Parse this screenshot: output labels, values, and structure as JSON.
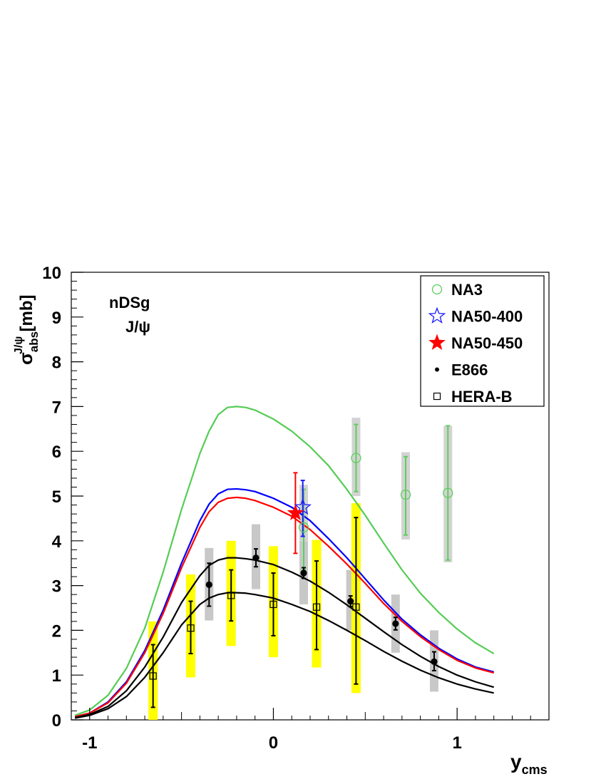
{
  "chart_data": {
    "type": "scatter",
    "xlabel": "y",
    "xlabel_sub": "cms",
    "ylabel_main": "σ",
    "ylabel_sup": "J/ψ",
    "ylabel_sub": "abs",
    "ylabel_unit": "[mb]",
    "xlim": [
      -1.1,
      1.5
    ],
    "ylim": [
      0,
      10
    ],
    "x_ticks": [
      -1,
      0,
      1
    ],
    "x_tick_labels": [
      "-1",
      "0",
      "1"
    ],
    "y_ticks": [
      0,
      1,
      2,
      3,
      4,
      5,
      6,
      7,
      8,
      9,
      10
    ],
    "y_tick_labels": [
      "0",
      "1",
      "2",
      "3",
      "4",
      "5",
      "6",
      "7",
      "8",
      "9",
      "10"
    ],
    "annotation": {
      "line1": "nDSg",
      "line2": "J/ψ"
    },
    "legend": {
      "position": "top-right",
      "entries": [
        {
          "label": "NA3",
          "marker": "open-circle",
          "color": "#5ccf5c"
        },
        {
          "label": "NA50-400",
          "marker": "open-star",
          "color": "#1a1aff"
        },
        {
          "label": "NA50-450",
          "marker": "filled-star",
          "color": "#ff0000"
        },
        {
          "label": "E866",
          "marker": "filled-dot",
          "color": "#000000"
        },
        {
          "label": "HERA-B",
          "marker": "open-square",
          "color": "#000000"
        }
      ]
    },
    "curves": [
      {
        "name": "green",
        "color": "#55cc55",
        "x": [
          -1.08,
          -1.0,
          -0.9,
          -0.8,
          -0.7,
          -0.6,
          -0.5,
          -0.4,
          -0.35,
          -0.3,
          -0.25,
          -0.2,
          -0.15,
          -0.1,
          0.0,
          0.1,
          0.2,
          0.3,
          0.4,
          0.5,
          0.6,
          0.7,
          0.8,
          0.9,
          1.0,
          1.1,
          1.2
        ],
        "y": [
          0.1,
          0.22,
          0.55,
          1.15,
          2.05,
          3.3,
          4.7,
          5.95,
          6.45,
          6.82,
          6.98,
          7.0,
          6.98,
          6.92,
          6.72,
          6.45,
          6.1,
          5.68,
          5.15,
          4.57,
          3.95,
          3.35,
          2.83,
          2.4,
          2.03,
          1.72,
          1.48
        ]
      },
      {
        "name": "blue",
        "color": "#0000ff",
        "x": [
          -1.08,
          -1.0,
          -0.9,
          -0.8,
          -0.7,
          -0.6,
          -0.5,
          -0.4,
          -0.35,
          -0.3,
          -0.25,
          -0.2,
          -0.15,
          -0.1,
          0.0,
          0.1,
          0.2,
          0.3,
          0.4,
          0.5,
          0.6,
          0.7,
          0.8,
          0.9,
          1.0,
          1.1,
          1.2
        ],
        "y": [
          0.07,
          0.15,
          0.4,
          0.85,
          1.55,
          2.45,
          3.5,
          4.45,
          4.82,
          5.05,
          5.15,
          5.16,
          5.14,
          5.1,
          4.95,
          4.75,
          4.45,
          4.05,
          3.62,
          3.15,
          2.68,
          2.25,
          1.9,
          1.6,
          1.36,
          1.18,
          1.07
        ]
      },
      {
        "name": "red",
        "color": "#ff0000",
        "x": [
          -1.08,
          -1.0,
          -0.9,
          -0.8,
          -0.7,
          -0.6,
          -0.5,
          -0.4,
          -0.35,
          -0.3,
          -0.25,
          -0.2,
          -0.15,
          -0.1,
          0.0,
          0.1,
          0.2,
          0.3,
          0.4,
          0.5,
          0.6,
          0.7,
          0.8,
          0.9,
          1.0,
          1.1,
          1.2
        ],
        "y": [
          0.07,
          0.15,
          0.38,
          0.82,
          1.5,
          2.38,
          3.4,
          4.3,
          4.65,
          4.86,
          4.95,
          4.97,
          4.95,
          4.9,
          4.75,
          4.55,
          4.25,
          3.88,
          3.48,
          3.05,
          2.6,
          2.2,
          1.86,
          1.57,
          1.33,
          1.16,
          1.05
        ]
      },
      {
        "name": "black-upper",
        "color": "#000000",
        "x": [
          -1.08,
          -1.0,
          -0.9,
          -0.8,
          -0.7,
          -0.6,
          -0.5,
          -0.4,
          -0.35,
          -0.3,
          -0.25,
          -0.2,
          -0.15,
          -0.1,
          0.0,
          0.1,
          0.2,
          0.3,
          0.4,
          0.5,
          0.6,
          0.7,
          0.8,
          0.9,
          1.0,
          1.1,
          1.2
        ],
        "y": [
          0.05,
          0.12,
          0.3,
          0.65,
          1.18,
          1.85,
          2.62,
          3.22,
          3.45,
          3.57,
          3.62,
          3.62,
          3.6,
          3.57,
          3.47,
          3.3,
          3.1,
          2.85,
          2.57,
          2.27,
          1.97,
          1.68,
          1.42,
          1.19,
          1.0,
          0.85,
          0.73
        ]
      },
      {
        "name": "black-lower",
        "color": "#000000",
        "x": [
          -1.08,
          -1.0,
          -0.9,
          -0.8,
          -0.7,
          -0.6,
          -0.5,
          -0.4,
          -0.35,
          -0.3,
          -0.25,
          -0.2,
          -0.15,
          -0.1,
          0.0,
          0.1,
          0.2,
          0.3,
          0.4,
          0.5,
          0.6,
          0.7,
          0.8,
          0.9,
          1.0,
          1.1,
          1.2
        ],
        "y": [
          0.04,
          0.1,
          0.25,
          0.52,
          0.95,
          1.5,
          2.12,
          2.58,
          2.72,
          2.8,
          2.84,
          2.84,
          2.83,
          2.8,
          2.72,
          2.58,
          2.42,
          2.22,
          2.0,
          1.77,
          1.53,
          1.31,
          1.11,
          0.94,
          0.8,
          0.69,
          0.6
        ]
      }
    ],
    "series": [
      {
        "name": "NA3",
        "marker": "open-circle",
        "color": "#5ccf5c",
        "sys_color": "#d3d3d3",
        "points": [
          {
            "x": 0.165,
            "y": 4.3,
            "err_lo": 0.95,
            "err_hi": 0.85,
            "sys_lo": 1.0,
            "sys_hi": 0.95
          },
          {
            "x": 0.45,
            "y": 5.85,
            "err_lo": 0.75,
            "err_hi": 0.75,
            "sys_lo": 0.85,
            "sys_hi": 0.9
          },
          {
            "x": 0.72,
            "y": 5.03,
            "err_lo": 0.9,
            "err_hi": 0.85,
            "sys_lo": 1.0,
            "sys_hi": 0.95
          },
          {
            "x": 0.95,
            "y": 5.07,
            "err_lo": 1.5,
            "err_hi": 1.5,
            "sys_lo": 1.55,
            "sys_hi": 1.5
          }
        ]
      },
      {
        "name": "NA50-400",
        "marker": "open-star",
        "color": "#1a1aff",
        "sys_color": null,
        "points": [
          {
            "x": 0.16,
            "y": 4.75,
            "err_lo": 0.65,
            "err_hi": 0.6,
            "sys_lo": 0,
            "sys_hi": 0
          }
        ]
      },
      {
        "name": "NA50-450",
        "marker": "filled-star",
        "color": "#ff0000",
        "sys_color": null,
        "points": [
          {
            "x": 0.12,
            "y": 4.62,
            "err_lo": 0.9,
            "err_hi": 0.9,
            "sys_lo": 0,
            "sys_hi": 0
          }
        ]
      },
      {
        "name": "E866",
        "marker": "filled-dot",
        "color": "#000000",
        "sys_color": "#c8c8c8",
        "points": [
          {
            "x": -0.35,
            "y": 3.02,
            "err_lo": 0.48,
            "err_hi": 0.48,
            "sys_lo": 0.8,
            "sys_hi": 0.82
          },
          {
            "x": -0.095,
            "y": 3.62,
            "err_lo": 0.2,
            "err_hi": 0.2,
            "sys_lo": 0.7,
            "sys_hi": 0.75
          },
          {
            "x": 0.165,
            "y": 3.28,
            "err_lo": 0.12,
            "err_hi": 0.12,
            "sys_lo": 0.7,
            "sys_hi": 0.7
          },
          {
            "x": 0.42,
            "y": 2.65,
            "err_lo": 0.12,
            "err_hi": 0.12,
            "sys_lo": 0.65,
            "sys_hi": 0.7
          },
          {
            "x": 0.665,
            "y": 2.15,
            "err_lo": 0.14,
            "err_hi": 0.14,
            "sys_lo": 0.65,
            "sys_hi": 0.65
          },
          {
            "x": 0.875,
            "y": 1.3,
            "err_lo": 0.2,
            "err_hi": 0.22,
            "sys_lo": 0.67,
            "sys_hi": 0.7
          }
        ]
      },
      {
        "name": "HERA-B",
        "marker": "open-square",
        "color": "#000000",
        "sys_color": "#ffff00",
        "points": [
          {
            "x": -0.655,
            "y": 0.98,
            "err_lo": 0.7,
            "err_hi": 0.7,
            "sys_lo": 0.98,
            "sys_hi": 1.22
          },
          {
            "x": -0.45,
            "y": 2.05,
            "err_lo": 0.57,
            "err_hi": 0.6,
            "sys_lo": 1.1,
            "sys_hi": 1.2
          },
          {
            "x": -0.23,
            "y": 2.78,
            "err_lo": 0.57,
            "err_hi": 0.57,
            "sys_lo": 1.13,
            "sys_hi": 1.22
          },
          {
            "x": 0.0,
            "y": 2.58,
            "err_lo": 0.7,
            "err_hi": 0.7,
            "sys_lo": 1.18,
            "sys_hi": 1.3
          },
          {
            "x": 0.235,
            "y": 2.52,
            "err_lo": 0.95,
            "err_hi": 1.03,
            "sys_lo": 1.35,
            "sys_hi": 1.5
          },
          {
            "x": 0.45,
            "y": 2.52,
            "err_lo": 1.72,
            "err_hi": 2.0,
            "sys_lo": 1.92,
            "sys_hi": 2.32
          }
        ]
      }
    ]
  }
}
